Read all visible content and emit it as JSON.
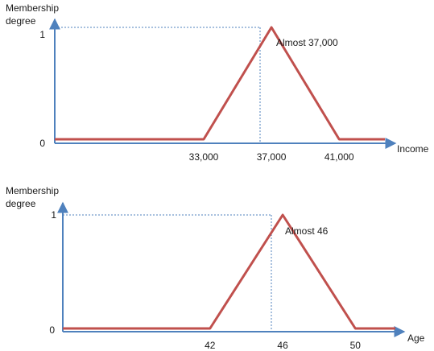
{
  "colors": {
    "axis": "#4f81bd",
    "curve": "#c0504d",
    "guide": "#4f81bd",
    "text": "#1a1a1a"
  },
  "chart_data": [
    {
      "type": "line",
      "ylabel_lines": [
        "Membership",
        "degree"
      ],
      "xlabel": "Income",
      "y_ticks": [
        "0",
        "1"
      ],
      "x_ticks": [
        {
          "value": 33000,
          "label": "33,000"
        },
        {
          "value": 37000,
          "label": "37,000"
        },
        {
          "value": 41000,
          "label": "41,000"
        }
      ],
      "x_domain": [
        24200,
        43700
      ],
      "ylim": [
        0,
        1
      ],
      "peak_label": "Almost 37,000",
      "series": [
        {
          "x": [
            24200,
            33000,
            37000,
            41000,
            43700
          ],
          "y": [
            0,
            0,
            1,
            0,
            0
          ]
        }
      ]
    },
    {
      "type": "line",
      "ylabel_lines": [
        "Membership",
        "degree"
      ],
      "xlabel": "Age",
      "y_ticks": [
        "0",
        "1"
      ],
      "x_ticks": [
        {
          "value": 42,
          "label": "42"
        },
        {
          "value": 46,
          "label": "46"
        },
        {
          "value": 50,
          "label": "50"
        }
      ],
      "x_domain": [
        33.9,
        52.2
      ],
      "ylim": [
        0,
        1
      ],
      "peak_label": "Almost 46",
      "series": [
        {
          "x": [
            33.9,
            42,
            46,
            50,
            52.2
          ],
          "y": [
            0,
            0,
            1,
            0,
            0
          ]
        }
      ]
    }
  ]
}
